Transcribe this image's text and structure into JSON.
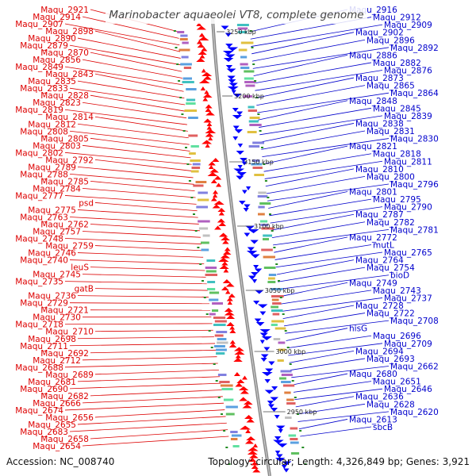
{
  "title": "Marinobacter aquaeolei VT8, complete genome",
  "footer": {
    "accession": "Accession: NC_008740",
    "summary": "Topology: circular; Length: 4,326,849 bp; Genes: 3,921"
  },
  "colors": {
    "reverse_strand_labels": "#dd0000",
    "forward_strand_labels": "#0000cc",
    "reverse_strand_genes": "#ff0000",
    "forward_strand_genes": "#0000ff",
    "backbone": "#888888",
    "ticks": "#228b22"
  },
  "position_markers": [
    "3250 kbp",
    "3200 kbp",
    "3150 kbp",
    "3100 kbp",
    "3050 kbp",
    "3000 kbp",
    "2950 kbp"
  ],
  "labels_left": [
    "Maqu_2921",
    "Maqu_2914",
    "Maqu_2907",
    "Maqu_2898",
    "Maqu_2890",
    "Maqu_2879",
    "Maqu_2870",
    "Maqu_2856",
    "Maqu_2849",
    "Maqu_2843",
    "Maqu_2835",
    "Maqu_2833",
    "Maqu_2828",
    "Maqu_2823",
    "Maqu_2819",
    "Maqu_2814",
    "Maqu_2812",
    "Maqu_2808",
    "Maqu_2805",
    "Maqu_2803",
    "Maqu_2802",
    "Maqu_2792",
    "Maqu_2789",
    "Maqu_2788",
    "Maqu_2785",
    "Maqu_2784",
    "Maqu_2777",
    "psd",
    "Maqu_2775",
    "Maqu_2763",
    "Maqu_2762",
    "Maqu_2757",
    "Maqu_2748",
    "Maqu_2759",
    "Maqu_2746",
    "Maqu_2740",
    "leuS",
    "Maqu_2745",
    "Maqu_2735",
    "gatB",
    "Maqu_2736",
    "Maqu_2729",
    "Maqu_2721",
    "Maqu_2730",
    "Maqu_2718",
    "Maqu_2710",
    "Maqu_2698",
    "Maqu_2711",
    "Maqu_2692",
    "Maqu_2712",
    "Maqu_2688",
    "Maqu_2689",
    "Maqu_2681",
    "Maqu_2690",
    "Maqu_2682",
    "Maqu_2666",
    "Maqu_2674",
    "Maqu_2656",
    "Maqu_2655",
    "Maqu_2683",
    "Maqu_2658",
    "Maqu_2654"
  ],
  "labels_right": [
    "Maqu_2916",
    "Maqu_2912",
    "Maqu_2909",
    "Maqu_2902",
    "Maqu_2896",
    "Maqu_2892",
    "Maqu_2886",
    "Maqu_2882",
    "Maqu_2876",
    "Maqu_2873",
    "Maqu_2865",
    "Maqu_2864",
    "Maqu_2848",
    "Maqu_2845",
    "Maqu_2839",
    "Maqu_2838",
    "Maqu_2831",
    "Maqu_2830",
    "Maqu_2821",
    "Maqu_2818",
    "Maqu_2811",
    "Maqu_2810",
    "Maqu_2800",
    "Maqu_2796",
    "Maqu_2801",
    "Maqu_2795",
    "Maqu_2790",
    "Maqu_2787",
    "Maqu_2782",
    "Maqu_2781",
    "Maqu_2772",
    "mutL",
    "Maqu_2765",
    "Maqu_2764",
    "Maqu_2754",
    "bioD",
    "Maqu_2749",
    "Maqu_2743",
    "Maqu_2737",
    "Maqu_2728",
    "Maqu_2722",
    "Maqu_2708",
    "hisG",
    "Maqu_2696",
    "Maqu_2709",
    "Maqu_2694",
    "Maqu_2693",
    "Maqu_2662",
    "Maqu_2680",
    "Maqu_2651",
    "Maqu_2646",
    "Maqu_2636",
    "Maqu_2628",
    "Maqu_2620",
    "Maqu_2613",
    "sbcB"
  ]
}
